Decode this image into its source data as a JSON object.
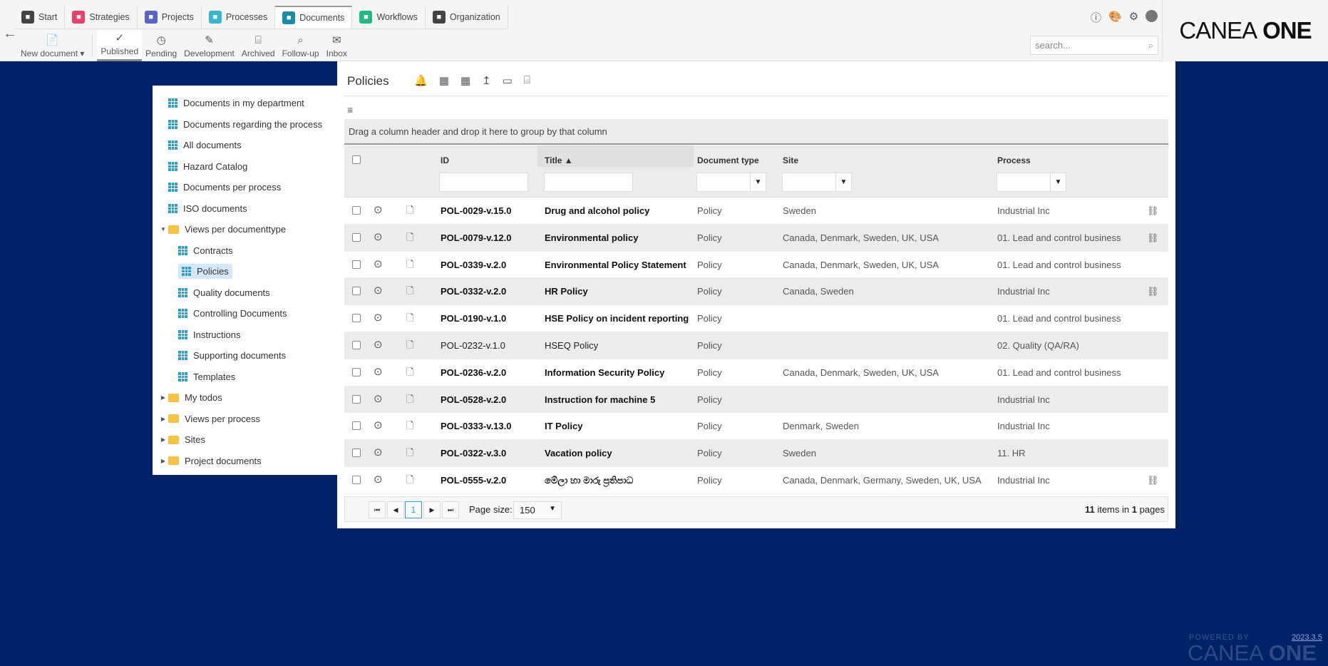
{
  "nav": {
    "tabs": [
      {
        "label": "Start",
        "icon": "home-icon",
        "color": "#444444"
      },
      {
        "label": "Strategies",
        "icon": "strategies-icon",
        "color": "#ec3f6a"
      },
      {
        "label": "Projects",
        "icon": "projects-icon",
        "color": "#5a63c9"
      },
      {
        "label": "Processes",
        "icon": "processes-icon",
        "color": "#36b6cf"
      },
      {
        "label": "Documents",
        "icon": "documents-icon",
        "color": "#1a8ca8",
        "active": true
      },
      {
        "label": "Workflows",
        "icon": "workflows-icon",
        "color": "#23b885"
      },
      {
        "label": "Organization",
        "icon": "organization-icon",
        "color": "#444444"
      }
    ]
  },
  "toolbar": {
    "new_document": "New document",
    "items": [
      "Published",
      "Pending",
      "Development",
      "Archived",
      "Follow-up",
      "Inbox"
    ],
    "active": "Published"
  },
  "search": {
    "placeholder": "search..."
  },
  "brand": {
    "logo_light": "CANEA",
    "logo_bold": "ONE",
    "powered_by": "POWERED BY",
    "version": "2023.3.5"
  },
  "tree": {
    "items": [
      "Documents in my department",
      "Documents regarding the process",
      "All documents",
      "Hazard Catalog",
      "Documents per process",
      "ISO documents"
    ],
    "views_folder": "Views per documenttype",
    "sub_items": [
      "Contracts",
      "Policies",
      "Quality documents",
      "Controlling Documents",
      "Instructions",
      "Supporting documents",
      "Templates"
    ],
    "folders": [
      "My todos",
      "Views per process",
      "Sites",
      "Project documents"
    ]
  },
  "main": {
    "title": "Policies",
    "group_hint": "Drag a column header and drop it here to group by that column",
    "columns": {
      "id": "ID",
      "title": "Title",
      "doctype": "Document type",
      "site": "Site",
      "process": "Process"
    },
    "rows": [
      {
        "id": "POL-0029-v.15.0",
        "title": "Drug and alcohol policy",
        "type": "Policy",
        "site": "Sweden",
        "process": "Industrial Inc",
        "link": true,
        "bold": true
      },
      {
        "id": "POL-0079-v.12.0",
        "title": "Environmental policy",
        "type": "Policy",
        "site": "Canada, Denmark, Sweden, UK, USA",
        "process": "01. Lead and control business",
        "link": true,
        "bold": true
      },
      {
        "id": "POL-0339-v.2.0",
        "title": "Environmental Policy Statement",
        "type": "Policy",
        "site": "Canada, Denmark, Sweden, UK, USA",
        "process": "01. Lead and control business",
        "link": false,
        "bold": true
      },
      {
        "id": "POL-0332-v.2.0",
        "title": "HR Policy",
        "type": "Policy",
        "site": "Canada, Sweden",
        "process": "Industrial Inc",
        "link": true,
        "bold": true
      },
      {
        "id": "POL-0190-v.1.0",
        "title": "HSE Policy on incident reporting",
        "type": "Policy",
        "site": "",
        "process": "01. Lead and control business",
        "link": false,
        "bold": true
      },
      {
        "id": "POL-0232-v.1.0",
        "title": "HSEQ Policy",
        "type": "Policy",
        "site": "",
        "process": "02. Quality (QA/RA)",
        "link": false,
        "bold": false
      },
      {
        "id": "POL-0236-v.2.0",
        "title": "Information Security Policy",
        "type": "Policy",
        "site": "Canada, Denmark, Sweden, UK, USA",
        "process": "01. Lead and control business",
        "link": false,
        "bold": true
      },
      {
        "id": "POL-0528-v.2.0",
        "title": "Instruction for machine 5",
        "type": "Policy",
        "site": "",
        "process": "Industrial Inc",
        "link": false,
        "bold": true
      },
      {
        "id": "POL-0333-v.13.0",
        "title": "IT Policy",
        "type": "Policy",
        "site": "Denmark, Sweden",
        "process": "Industrial Inc",
        "link": false,
        "bold": true
      },
      {
        "id": "POL-0322-v.3.0",
        "title": "Vacation policy",
        "type": "Policy",
        "site": "Sweden",
        "process": "11. HR",
        "link": false,
        "bold": true
      },
      {
        "id": "POL-0555-v.2.0",
        "title": "මේලා හා මාරු ප්‍රතිපාධ",
        "type": "Policy",
        "site": "Canada, Denmark, Germany, Sweden, UK, USA",
        "process": "Industrial Inc",
        "link": true,
        "bold": true
      }
    ],
    "pager": {
      "page": "1",
      "page_size_label": "Page size:",
      "page_size": "150",
      "items": "11",
      "items_text": " items in ",
      "pages": "1",
      "pages_text": " pages"
    }
  }
}
